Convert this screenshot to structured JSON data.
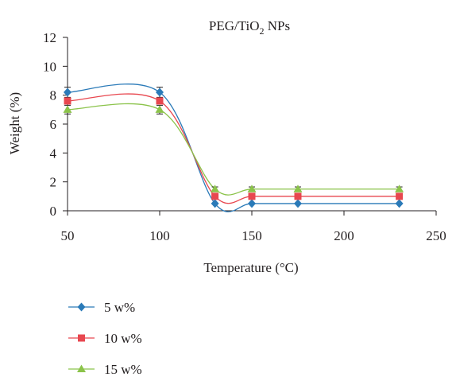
{
  "chart_data": {
    "type": "line",
    "title": "PEG/TiO",
    "title_subscript": "2",
    "title_suffix": " NPs",
    "xlabel": "Temperature (°C)",
    "ylabel": "Weight (%)",
    "xlim": [
      50,
      250
    ],
    "ylim": [
      0,
      12
    ],
    "xticks": [
      50,
      100,
      150,
      200,
      250
    ],
    "yticks": [
      0,
      2,
      4,
      6,
      8,
      10,
      12
    ],
    "grid": false,
    "legend_position": "bottom-left",
    "series": [
      {
        "name": "5 w%",
        "color": "#2a7ab8",
        "marker": "diamond",
        "x": [
          50,
          100,
          130,
          150,
          175,
          230
        ],
        "values": [
          8.2,
          8.2,
          0.5,
          0.5,
          0.5,
          0.5
        ],
        "error": [
          0.35,
          0.35,
          0,
          0,
          0,
          0
        ]
      },
      {
        "name": "10 w%",
        "color": "#e8474f",
        "marker": "square",
        "x": [
          50,
          100,
          130,
          150,
          175,
          230
        ],
        "values": [
          7.6,
          7.6,
          1.0,
          1.0,
          1.0,
          1.0
        ],
        "error": [
          0,
          0,
          0,
          0,
          0,
          0
        ]
      },
      {
        "name": "15 w%",
        "color": "#8bc34a",
        "marker": "triangle",
        "x": [
          50,
          100,
          130,
          150,
          175,
          230
        ],
        "values": [
          7.0,
          7.0,
          1.5,
          1.5,
          1.5,
          1.5
        ],
        "error": [
          0.3,
          0.3,
          0.15,
          0.15,
          0.15,
          0.15
        ]
      }
    ]
  }
}
